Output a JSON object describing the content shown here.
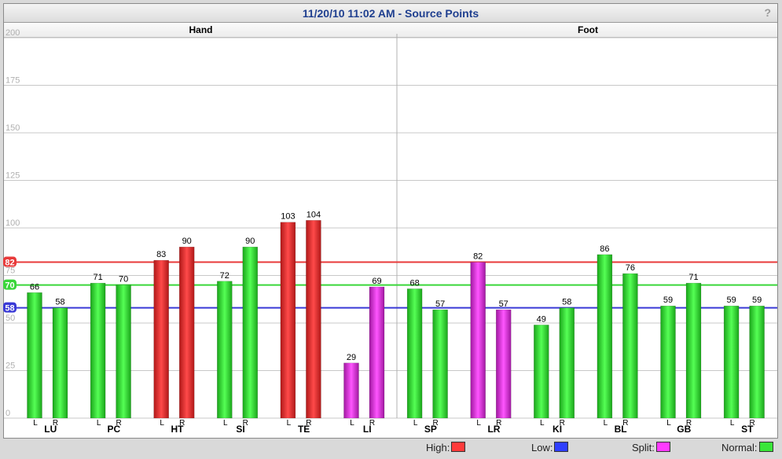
{
  "title": "11/20/10 11:02 AM - Source Points",
  "help_label": "?",
  "groups": [
    {
      "label": "Hand"
    },
    {
      "label": "Foot"
    }
  ],
  "legend": {
    "high": {
      "label": "High:",
      "color": "#ff3b3b"
    },
    "low": {
      "label": "Low:",
      "color": "#2f3fff"
    },
    "split": {
      "label": "Split:",
      "color": "#ff3bff"
    },
    "normal": {
      "label": "Normal:",
      "color": "#39e639"
    }
  },
  "chart_data": {
    "type": "bar",
    "ylim": [
      0,
      200
    ],
    "yticks": [
      0,
      25,
      50,
      75,
      100,
      125,
      150,
      175,
      200
    ],
    "grid": true,
    "reference_lines": [
      {
        "value": 82,
        "label": "82",
        "color": "#e83a3a"
      },
      {
        "value": 70,
        "label": "70",
        "color": "#3ad63a"
      },
      {
        "value": 58,
        "label": "58",
        "color": "#3a3ad6"
      }
    ],
    "categories": [
      {
        "name": "LU",
        "group": "Hand",
        "L": {
          "value": 66,
          "status": "normal"
        },
        "R": {
          "value": 58,
          "status": "normal"
        }
      },
      {
        "name": "PC",
        "group": "Hand",
        "L": {
          "value": 71,
          "status": "normal"
        },
        "R": {
          "value": 70,
          "status": "normal"
        }
      },
      {
        "name": "HT",
        "group": "Hand",
        "L": {
          "value": 83,
          "status": "high"
        },
        "R": {
          "value": 90,
          "status": "high"
        }
      },
      {
        "name": "SI",
        "group": "Hand",
        "L": {
          "value": 72,
          "status": "normal"
        },
        "R": {
          "value": 90,
          "status": "normal"
        }
      },
      {
        "name": "TE",
        "group": "Hand",
        "L": {
          "value": 103,
          "status": "high"
        },
        "R": {
          "value": 104,
          "status": "high"
        }
      },
      {
        "name": "LI",
        "group": "Hand",
        "L": {
          "value": 29,
          "status": "split"
        },
        "R": {
          "value": 69,
          "status": "split"
        }
      },
      {
        "name": "SP",
        "group": "Foot",
        "L": {
          "value": 68,
          "status": "normal"
        },
        "R": {
          "value": 57,
          "status": "normal"
        }
      },
      {
        "name": "LR",
        "group": "Foot",
        "L": {
          "value": 82,
          "status": "split"
        },
        "R": {
          "value": 57,
          "status": "split"
        }
      },
      {
        "name": "KI",
        "group": "Foot",
        "L": {
          "value": 49,
          "status": "normal"
        },
        "R": {
          "value": 58,
          "status": "normal"
        }
      },
      {
        "name": "BL",
        "group": "Foot",
        "L": {
          "value": 86,
          "status": "normal"
        },
        "R": {
          "value": 76,
          "status": "normal"
        }
      },
      {
        "name": "GB",
        "group": "Foot",
        "L": {
          "value": 59,
          "status": "normal"
        },
        "R": {
          "value": 71,
          "status": "normal"
        }
      },
      {
        "name": "ST",
        "group": "Foot",
        "L": {
          "value": 59,
          "status": "normal"
        },
        "R": {
          "value": 59,
          "status": "normal"
        }
      }
    ],
    "side_labels": [
      "L",
      "R"
    ]
  }
}
